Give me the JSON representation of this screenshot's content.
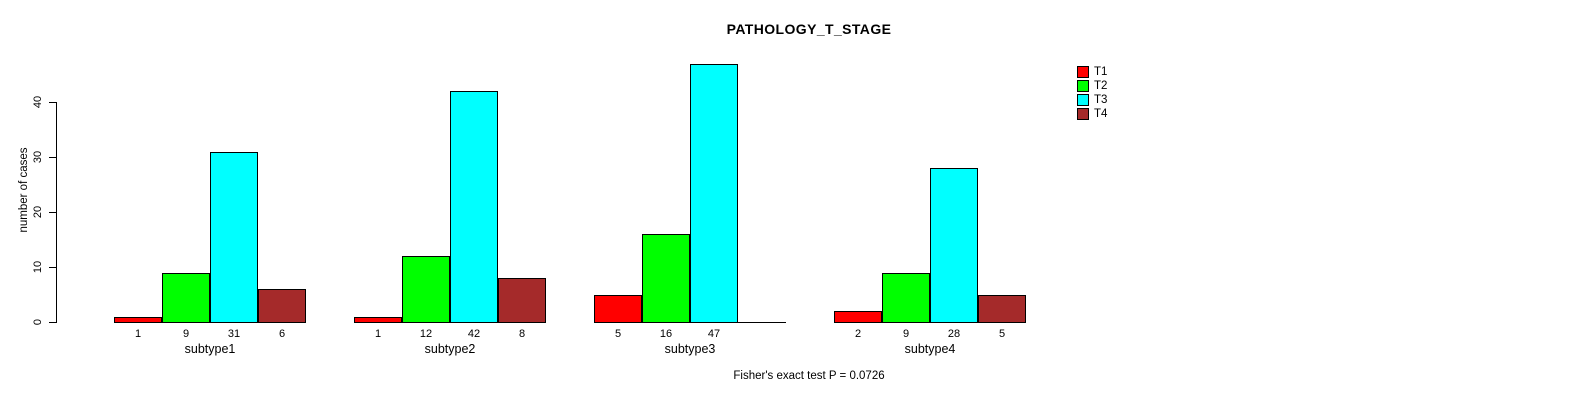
{
  "title": "PATHOLOGY_T_STAGE",
  "chart_data": {
    "type": "bar",
    "title": "PATHOLOGY_T_STAGE",
    "ylabel": "number of cases",
    "xlabel": "",
    "ylim": [
      0,
      40
    ],
    "yticks": [
      0,
      10,
      20,
      30,
      40
    ],
    "grid": false,
    "legend_position": "top-right",
    "categories": [
      "subtype1",
      "subtype2",
      "subtype3",
      "subtype4"
    ],
    "series": [
      {
        "name": "T1",
        "color": "#ff0000",
        "values": [
          1,
          1,
          5,
          2
        ]
      },
      {
        "name": "T2",
        "color": "#00ff00",
        "values": [
          9,
          12,
          16,
          9
        ]
      },
      {
        "name": "T3",
        "color": "#00ffff",
        "values": [
          31,
          42,
          47,
          28
        ]
      },
      {
        "name": "T4",
        "color": "#a52a2a",
        "values": [
          6,
          8,
          0,
          5
        ]
      }
    ],
    "bar_value_labels": [
      [
        "1",
        "9",
        "31",
        "6"
      ],
      [
        "1",
        "12",
        "42",
        "8"
      ],
      [
        "5",
        "16",
        "47",
        ""
      ],
      [
        "2",
        "9",
        "28",
        "5"
      ]
    ],
    "annotation": "Fisher's exact test P = 0.0726"
  },
  "colors": {
    "background": "#ffffff",
    "axis": "#000000",
    "text": "#000000"
  }
}
